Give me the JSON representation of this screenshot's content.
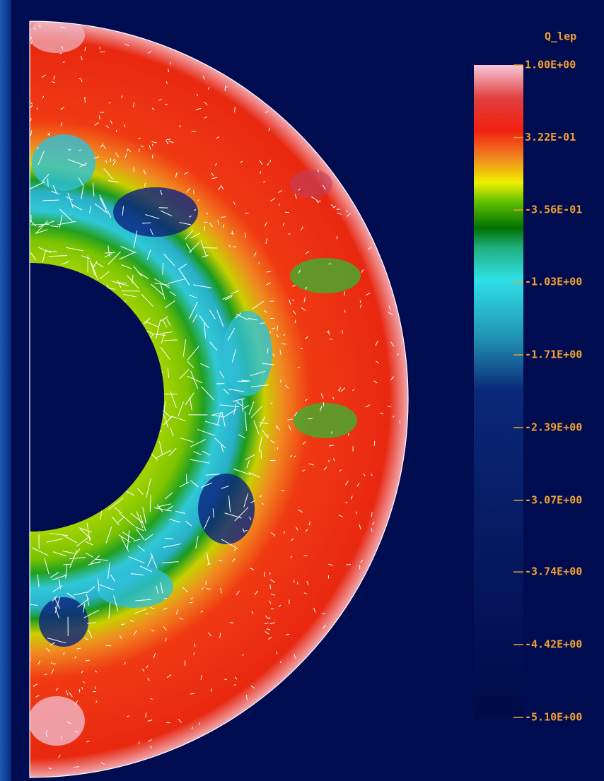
{
  "colorbar": {
    "title": "Q_lep",
    "lim": [
      -5.1,
      1.0
    ],
    "ticks": [
      {
        "value": 1.0,
        "label": "1.00E+00"
      },
      {
        "value": 0.322,
        "label": "3.22E-01"
      },
      {
        "value": -0.356,
        "label": "-3.56E-01"
      },
      {
        "value": -1.03,
        "label": "-1.03E+00"
      },
      {
        "value": -1.71,
        "label": "-1.71E+00"
      },
      {
        "value": -2.39,
        "label": "-2.39E+00"
      },
      {
        "value": -3.07,
        "label": "-3.07E+00"
      },
      {
        "value": -3.74,
        "label": "-3.74E+00"
      },
      {
        "value": -4.42,
        "label": "-4.42E+00"
      },
      {
        "value": -5.1,
        "label": "-5.10E+00"
      }
    ]
  }
}
